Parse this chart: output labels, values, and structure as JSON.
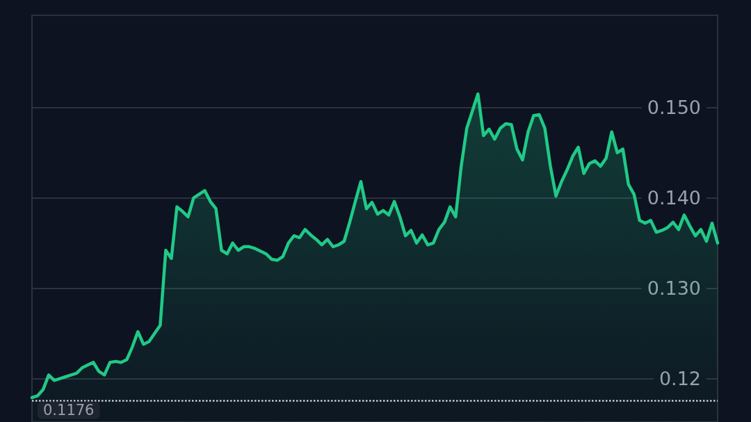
{
  "chart_data": {
    "type": "area",
    "categories": [
      null,
      null,
      null,
      null,
      null,
      null,
      null,
      null,
      null,
      null,
      null,
      null,
      null,
      null,
      null,
      null,
      null,
      null,
      null,
      null,
      null,
      null,
      null,
      null,
      null,
      null,
      null,
      null,
      null,
      null,
      null,
      null,
      null,
      null,
      null,
      null,
      null,
      null,
      null,
      null,
      null,
      null,
      null,
      null,
      null,
      null,
      null,
      null,
      null,
      null,
      null,
      null,
      null,
      null,
      null,
      null,
      null,
      null,
      null,
      null,
      null,
      null,
      null,
      null,
      null,
      null,
      null,
      null,
      null,
      null,
      null,
      null,
      null,
      null,
      null,
      null,
      null,
      null,
      null,
      null,
      null,
      null,
      null,
      null,
      null,
      null,
      null,
      null,
      null,
      null,
      null,
      null,
      null,
      null,
      null,
      null,
      null,
      null,
      null,
      null,
      null,
      null,
      null,
      null,
      null,
      null,
      null,
      null,
      null,
      null,
      null,
      null,
      null,
      null,
      null,
      null,
      null,
      null,
      null,
      null,
      null,
      null,
      null,
      null
    ],
    "color": "#20c987",
    "values": [
      0.1179,
      0.1181,
      0.1188,
      0.1204,
      0.1198,
      0.12,
      0.1202,
      0.1204,
      0.1206,
      0.1212,
      0.1215,
      0.1218,
      0.1208,
      0.1204,
      0.1218,
      0.1219,
      0.1218,
      0.1221,
      0.1235,
      0.1252,
      0.1238,
      0.1241,
      0.125,
      0.1259,
      0.1342,
      0.1333,
      0.139,
      0.1385,
      0.1379,
      0.14,
      0.1404,
      0.1408,
      0.1396,
      0.1388,
      0.1342,
      0.1338,
      0.135,
      0.1342,
      0.1346,
      0.1346,
      0.1344,
      0.1341,
      0.1338,
      0.1332,
      0.1331,
      0.1335,
      0.135,
      0.1358,
      0.1356,
      0.1365,
      0.1359,
      0.1354,
      0.1348,
      0.1354,
      0.1346,
      0.1348,
      0.1352,
      0.1373,
      0.1396,
      0.1418,
      0.1388,
      0.1395,
      0.1382,
      0.1386,
      0.1381,
      0.1396,
      0.1379,
      0.1358,
      0.1364,
      0.135,
      0.1359,
      0.1348,
      0.135,
      0.1365,
      0.1373,
      0.139,
      0.1379,
      0.1435,
      0.1477,
      0.1496,
      0.1515,
      0.1469,
      0.1476,
      0.1465,
      0.1477,
      0.1482,
      0.1481,
      0.1454,
      0.1442,
      0.1473,
      0.1491,
      0.1492,
      0.1477,
      0.1435,
      0.1402,
      0.1418,
      0.1431,
      0.1446,
      0.1456,
      0.1427,
      0.1438,
      0.1441,
      0.1435,
      0.1444,
      0.1473,
      0.145,
      0.1454,
      0.1415,
      0.1404,
      0.1375,
      0.1372,
      0.1375,
      0.1362,
      0.1364,
      0.1367,
      0.1373,
      0.1365,
      0.1381,
      0.1369,
      0.1358,
      0.1365,
      0.1352,
      0.1372,
      0.135
    ],
    "ylim": [
      0.1152,
      0.1602
    ],
    "yticks": [
      {
        "value": 0.12,
        "label": "0.12"
      },
      {
        "value": 0.13,
        "label": "0.130"
      },
      {
        "value": 0.14,
        "label": "0.140"
      },
      {
        "value": 0.15,
        "label": "0.150"
      }
    ],
    "grid": "y",
    "tick_labels": "y",
    "ref_lines": [
      {
        "axis": "y",
        "value": 0.1176,
        "label": "0.1176",
        "color": "#c8ccd2",
        "line_style": "dotted"
      }
    ]
  }
}
